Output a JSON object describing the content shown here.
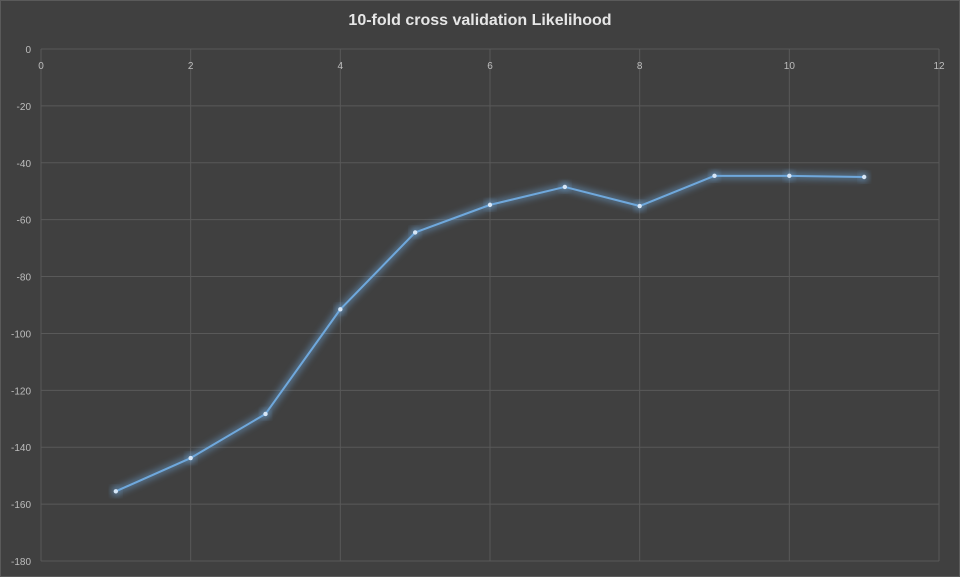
{
  "chart_data": {
    "type": "line",
    "title": "10-fold cross validation Likelihood",
    "xlabel": "",
    "ylabel": "",
    "xlim": [
      0,
      12
    ],
    "ylim": [
      -180,
      0
    ],
    "x_ticks": [
      "0",
      "2",
      "4",
      "6",
      "8",
      "10",
      "12"
    ],
    "y_ticks": [
      "0",
      "-20",
      "-40",
      "-60",
      "-80",
      "-100",
      "-120",
      "-140",
      "-160",
      "-180"
    ],
    "x_axis_position": "top",
    "grid": true,
    "legend": "none",
    "series": [
      {
        "x": [
          1,
          2,
          3,
          4,
          5,
          6,
          7,
          8,
          9,
          10,
          11
        ],
        "values": [
          -155.5,
          -143.8,
          -128.3,
          -91.5,
          -64.5,
          -54.8,
          -48.5,
          -55.2,
          -44.6,
          -44.6,
          -45.0
        ]
      }
    ],
    "colors": {
      "background": "#404040",
      "line": "#6fa8dc",
      "grid": "#595959",
      "text": "#bdbdbd",
      "title": "#e6e6e6"
    }
  }
}
